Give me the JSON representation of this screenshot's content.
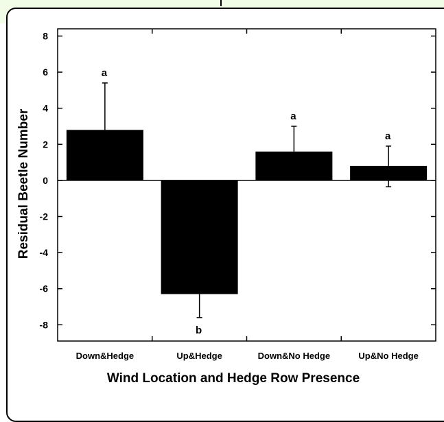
{
  "chart_data": {
    "type": "bar",
    "categories": [
      "Down&Hedge",
      "Up&Hedge",
      "Down&No Hedge",
      "Up&No Hedge"
    ],
    "values": [
      2.8,
      -6.3,
      1.6,
      0.8
    ],
    "error_upper": [
      5.4,
      -7.6,
      3.0,
      1.9
    ],
    "error_lower": [
      null,
      null,
      null,
      -0.35
    ],
    "significance_letters": [
      "a",
      "b",
      "a",
      "a"
    ],
    "xlabel": "Wind Location and Hedge Row Presence",
    "ylabel": "Residual Beetle Number",
    "ylim": [
      -8.9,
      8.4
    ],
    "yticks": [
      -8,
      -6,
      -4,
      -2,
      0,
      2,
      4,
      6,
      8
    ],
    "bar_color": "#000000",
    "grid": false
  }
}
